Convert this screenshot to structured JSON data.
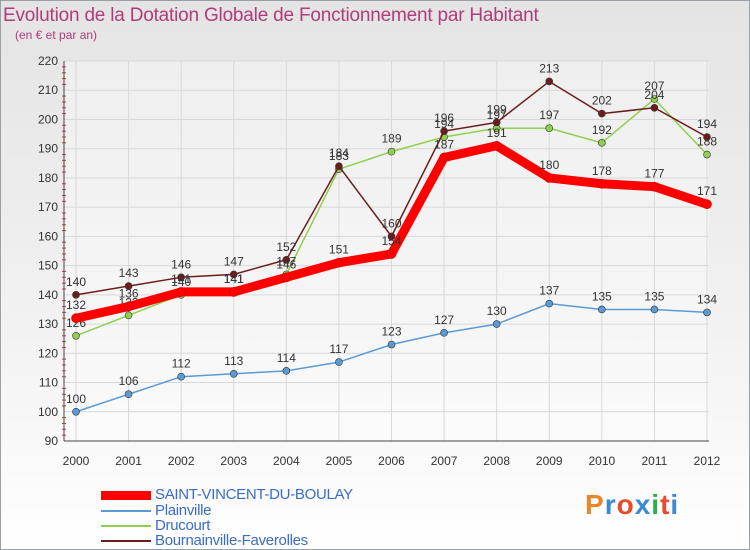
{
  "title": "Evolution de la Dotation Globale de Fonctionnement par Habitant",
  "subtitle": "(en € et par an)",
  "logo": {
    "text": "Proxiti",
    "colors": [
      "#e8862a",
      "#3a8ad6",
      "#e84a2a",
      "#3a8ad6",
      "#2ab04a",
      "#e84a2a",
      "#3a8ad6"
    ]
  },
  "legend": [
    {
      "label": "SAINT-VINCENT-DU-BOULAY",
      "color": "#ff0000"
    },
    {
      "label": "Plainville",
      "color": "#5b9bd5"
    },
    {
      "label": "Drucourt",
      "color": "#8ed14f"
    },
    {
      "label": "Bournainville-Faverolles",
      "color": "#6b1d1d"
    }
  ],
  "chart_data": {
    "type": "line",
    "title": "Evolution de la Dotation Globale de Fonctionnement par Habitant",
    "ylabel": "(en € et par an)",
    "x": [
      "2000",
      "2001",
      "2002",
      "2003",
      "2004",
      "2005",
      "2006",
      "2007",
      "2008",
      "2009",
      "2010",
      "2011",
      "2012"
    ],
    "ylim": [
      90,
      220
    ],
    "yticks": [
      90,
      100,
      110,
      120,
      130,
      140,
      150,
      160,
      170,
      180,
      190,
      200,
      210,
      220
    ],
    "grid": true,
    "series": [
      {
        "name": "Plainville",
        "color": "#5b9bd5",
        "values": [
          100,
          106,
          112,
          113,
          114,
          117,
          123,
          127,
          130,
          137,
          135,
          135,
          134
        ]
      },
      {
        "name": "Drucourt",
        "color": "#8ed14f",
        "values": [
          126,
          133,
          140,
          141,
          147,
          183,
          189,
          194,
          197,
          197,
          192,
          207,
          188
        ]
      },
      {
        "name": "Bournainville-Faverolles",
        "color": "#6b1d1d",
        "values": [
          140,
          143,
          146,
          147,
          152,
          184,
          160,
          196,
          199,
          213,
          202,
          204,
          194
        ]
      },
      {
        "name": "SAINT-VINCENT-DU-BOULAY",
        "color": "#ff0000",
        "values": [
          132,
          136,
          141,
          141,
          146,
          151,
          154,
          187,
          191,
          180,
          178,
          177,
          171
        ]
      }
    ]
  }
}
